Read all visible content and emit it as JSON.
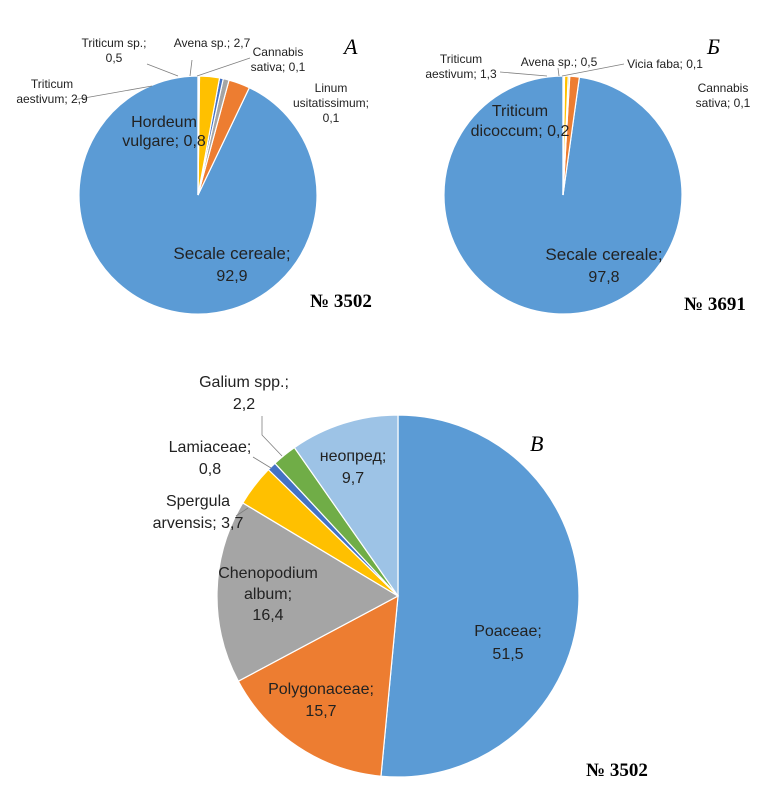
{
  "colors": {
    "blue": "#5b9bd5",
    "orange": "#ed7d31",
    "yellow": "#ffc000",
    "gray": "#a5a5a5",
    "darkblue": "#4472c4",
    "green": "#70ad47",
    "lightblue": "#9dc3e6",
    "olive": "#8cb14b",
    "leader": "#7f7f7f",
    "text": "#222222"
  },
  "chart_data": [
    {
      "id": "A",
      "type": "pie",
      "panel_label": "А",
      "sample": "№ 3502",
      "slices": [
        {
          "name": "Secale cereale;",
          "value": 92.9,
          "value_label": "92,9",
          "color": "blue"
        },
        {
          "name": "Triticum aestivum; 2,9",
          "value": 2.9,
          "value_label": "2,9",
          "color": "orange"
        },
        {
          "name": "Hordeum vulgare; 0,8",
          "value": 0.8,
          "value_label": "0,8",
          "color": "gray"
        },
        {
          "name": "Triticum sp.; 0,5",
          "value": 0.5,
          "value_label": "0,5",
          "color": "darkblue"
        },
        {
          "name": "Avena sp.; 2,7",
          "value": 2.7,
          "value_label": "2,7",
          "color": "yellow"
        },
        {
          "name": "Cannabis sativa; 0,1",
          "value": 0.1,
          "value_label": "0,1",
          "color": "green"
        },
        {
          "name": "Linum usitatissimum; 0,1",
          "value": 0.1,
          "value_label": "0,1",
          "color": "lightblue"
        }
      ]
    },
    {
      "id": "B",
      "type": "pie",
      "panel_label": "Б",
      "sample": "№ 3691",
      "slices": [
        {
          "name": "Secale cereale;",
          "value": 97.8,
          "value_label": "97,8",
          "color": "blue"
        },
        {
          "name": "Triticum aestivum; 1,3",
          "value": 1.3,
          "value_label": "1,3",
          "color": "orange"
        },
        {
          "name": "Triticum dicoccum; 0,2",
          "value": 0.2,
          "value_label": "0,2",
          "color": "gray"
        },
        {
          "name": "Avena sp.; 0,5",
          "value": 0.5,
          "value_label": "0,5",
          "color": "yellow"
        },
        {
          "name": "Vicia faba; 0,1",
          "value": 0.1,
          "value_label": "0,1",
          "color": "darkblue"
        },
        {
          "name": "Cannabis sativa; 0,1",
          "value": 0.1,
          "value_label": "0,1",
          "color": "olive"
        }
      ]
    },
    {
      "id": "V",
      "type": "pie",
      "panel_label": "В",
      "sample": "№ 3502",
      "slices": [
        {
          "name": "Poaceae;",
          "value": 51.5,
          "value_label": "51,5",
          "color": "blue"
        },
        {
          "name": "Polygonaceae;",
          "value": 15.7,
          "value_label": "15,7",
          "color": "orange"
        },
        {
          "name": "Chenopodium album;",
          "value": 16.4,
          "value_label": "16,4",
          "color": "gray"
        },
        {
          "name": "Spergula arvensis;",
          "value": 3.7,
          "value_label": "3,7",
          "color": "yellow"
        },
        {
          "name": "Lamiaceae;",
          "value": 0.8,
          "value_label": "0,8",
          "color": "darkblue"
        },
        {
          "name": "Galium spp.;",
          "value": 2.2,
          "value_label": "2,2",
          "color": "green"
        },
        {
          "name": "неопред;",
          "value": 9.7,
          "value_label": "9,7",
          "color": "lightblue"
        }
      ]
    }
  ],
  "labels": {
    "A": {
      "secale_name": "Secale cereale;",
      "secale_value": "92,9",
      "hordeum_l1": "Hordeum",
      "hordeum_l2": "vulgare; 0,8",
      "aestivum_l1": "Triticum",
      "aestivum_l2": "aestivum; 2,9",
      "triticum_sp_l1": "Triticum sp.;",
      "triticum_sp_l2": "0,5",
      "avena": "Avena sp.; 2,7",
      "cannabis_l1": "Cannabis",
      "cannabis_l2": "sativa; 0,1",
      "linum_l1": "Linum",
      "linum_l2": "usitatissimum;",
      "linum_l3": "0,1"
    },
    "B": {
      "secale_name": "Secale cereale;",
      "secale_value": "97,8",
      "dicoccum_l1": "Triticum",
      "dicoccum_l2": "dicoccum; 0,2",
      "aestivum_l1": "Triticum",
      "aestivum_l2": "aestivum; 1,3",
      "avena": "Avena sp.; 0,5",
      "vicia": "Vicia faba; 0,1",
      "cannabis_l1": "Cannabis",
      "cannabis_l2": "sativa; 0,1"
    },
    "V": {
      "poaceae_name": "Poaceae;",
      "poaceae_value": "51,5",
      "polygon_name": "Polygonaceae;",
      "polygon_value": "15,7",
      "cheno_l1": "Chenopodium",
      "cheno_l2": "album;",
      "cheno_l3": "16,4",
      "spergula_l1": "Spergula",
      "spergula_l2": "arvensis; 3,7",
      "lamiaceae_l1": "Lamiaceae;",
      "lamiaceae_l2": "0,8",
      "galium_l1": "Galium spp.;",
      "galium_l2": "2,2",
      "neopred_l1": "неопред;",
      "neopred_l2": "9,7"
    }
  }
}
